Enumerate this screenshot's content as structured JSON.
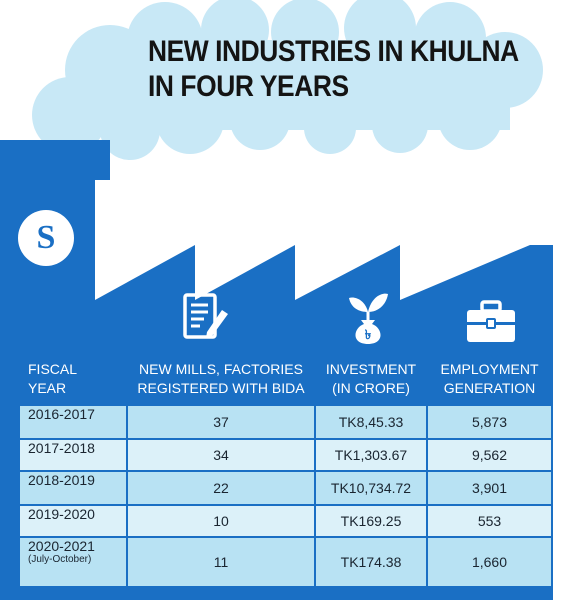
{
  "title": {
    "line1": "NEW INDUSTRIES IN KHULNA",
    "line2": "IN FOUR YEARS"
  },
  "logo": {
    "letter": "S"
  },
  "colors": {
    "factory": "#1a6fc4",
    "row_light": "#dcf1f9",
    "row_dark": "#b8e2f3",
    "cloud": "#c8e8f6"
  },
  "icons": [
    "document-pen-icon",
    "money-plant-icon",
    "briefcase-icon"
  ],
  "chart_data": {
    "type": "table",
    "title": "NEW INDUSTRIES IN KHULNA IN FOUR YEARS",
    "columns": [
      {
        "line1": "FISCAL",
        "line2": "YEAR"
      },
      {
        "line1": "NEW MILLS, FACTORIES",
        "line2": "REGISTERED WITH BIDA"
      },
      {
        "line1": "INVESTMENT",
        "line2": "(IN CRORE)"
      },
      {
        "line1": "EMPLOYMENT",
        "line2": "GENERATION"
      }
    ],
    "rows": [
      {
        "year": "2016-2017",
        "note": "",
        "factories": "37",
        "investment": "TK8,45.33",
        "employment": "5,873"
      },
      {
        "year": "2017-2018",
        "note": "",
        "factories": "34",
        "investment": "TK1,303.67",
        "employment": "9,562"
      },
      {
        "year": "2018-2019",
        "note": "",
        "factories": "22",
        "investment": "TK10,734.72",
        "employment": "3,901"
      },
      {
        "year": "2019-2020",
        "note": "",
        "factories": "10",
        "investment": "TK169.25",
        "employment": "553"
      },
      {
        "year": "2020-2021",
        "note": "(July-October)",
        "factories": "11",
        "investment": "TK174.38",
        "employment": "1,660"
      }
    ]
  }
}
